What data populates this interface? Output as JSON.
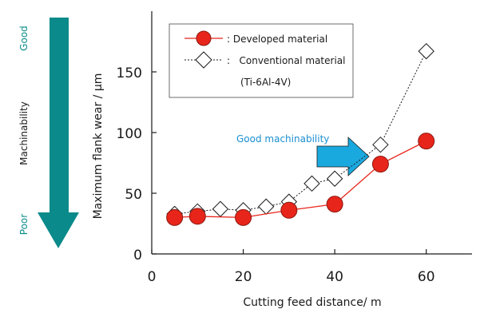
{
  "colors": {
    "teal": "#0a8a8a",
    "developed": "#e8251a",
    "conventional_fill": "#ffffff",
    "highlight_arrow": "#1aa9df",
    "highlight_text": "#1a8fd1",
    "axis": "#1a1a1a"
  },
  "machinability_scale": {
    "label": "Machinability",
    "top_label": "Good",
    "bottom_label": "Poor"
  },
  "chart_data": {
    "type": "line",
    "title": "",
    "xlabel": "Cutting feed distance/ m",
    "ylabel": "Maximum flank wear / μm",
    "xlim": [
      0,
      70
    ],
    "ylim": [
      0,
      200
    ],
    "x_ticks": [
      0,
      20,
      40,
      60
    ],
    "y_ticks": [
      0,
      50,
      100,
      150
    ],
    "grid": false,
    "legend": {
      "placement": "top-left",
      "entries": [
        {
          "text": ": Developed material"
        },
        {
          "text": ":   Conventional material"
        }
      ],
      "note": "(Ti-6Al-4V)"
    },
    "series": [
      {
        "name": "Developed material",
        "marker": "circle",
        "line": "solid",
        "color": "#e8251a",
        "x": [
          5,
          10,
          20,
          30,
          40,
          50,
          60
        ],
        "y": [
          30,
          31,
          30,
          36,
          41,
          74,
          93
        ]
      },
      {
        "name": "Conventional material",
        "marker": "diamond",
        "line": "dotted",
        "color": "#1a1a1a",
        "x": [
          5,
          10,
          15,
          20,
          25,
          30,
          35,
          40,
          50,
          60
        ],
        "y": [
          33,
          35,
          37,
          36,
          39,
          43,
          58,
          62,
          90,
          167
        ]
      }
    ],
    "annotations": [
      {
        "text": "Good machinability"
      }
    ]
  }
}
